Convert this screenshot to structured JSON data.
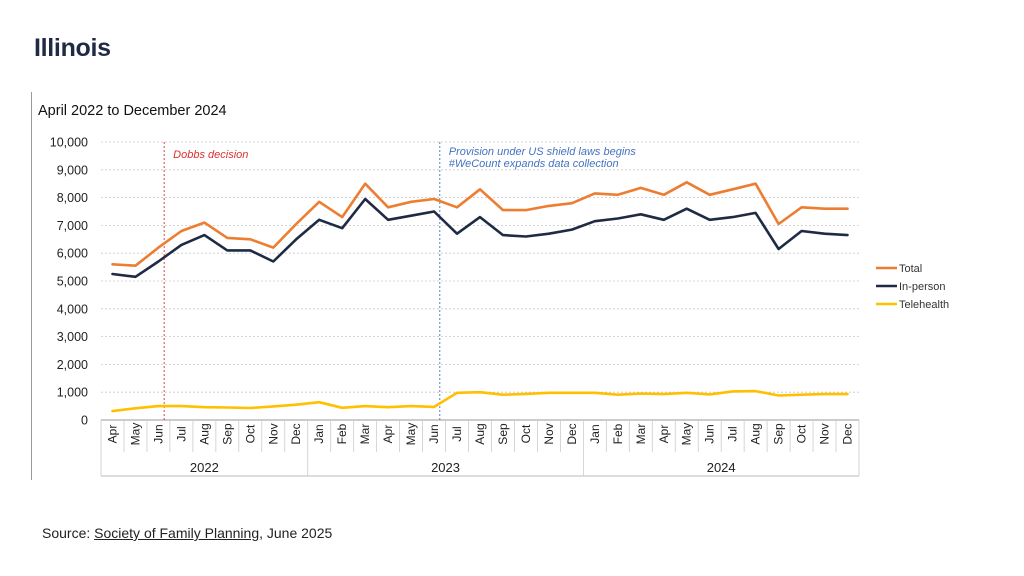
{
  "page_title": "Illinois",
  "source": {
    "prefix": "Source: ",
    "link_text": "Society of Family Planning",
    "suffix": ", June 2025"
  },
  "colors": {
    "total": "#ED7D31",
    "in_person": "#1F2A44",
    "telehealth": "#FFC000",
    "dobbs": "#E03030",
    "shield": "#4472C4"
  },
  "chart_data": {
    "type": "line",
    "title": "April 2022 to December 2024",
    "xlabel": "",
    "ylabel": "",
    "ylim": [
      0,
      10000
    ],
    "yticks": [
      "0",
      "1,000",
      "2,000",
      "3,000",
      "4,000",
      "5,000",
      "6,000",
      "7,000",
      "8,000",
      "9,000",
      "10,000"
    ],
    "grid": true,
    "legend_position": "right",
    "categories": [
      "Apr",
      "May",
      "Jun",
      "Jul",
      "Aug",
      "Sep",
      "Oct",
      "Nov",
      "Dec",
      "Jan",
      "Feb",
      "Mar",
      "Apr",
      "May",
      "Jun",
      "Jul",
      "Aug",
      "Sep",
      "Oct",
      "Nov",
      "Dec",
      "Jan",
      "Feb",
      "Mar",
      "Apr",
      "May",
      "Jun",
      "Jul",
      "Aug",
      "Sep",
      "Oct",
      "Nov",
      "Dec"
    ],
    "year_groups": [
      {
        "label": "2022",
        "start": 0,
        "count": 9
      },
      {
        "label": "2023",
        "start": 9,
        "count": 12
      },
      {
        "label": "2024",
        "start": 21,
        "count": 12
      }
    ],
    "series": [
      {
        "name": "Total",
        "values": [
          5600,
          5550,
          6200,
          6800,
          7100,
          6550,
          6500,
          6200,
          7050,
          7850,
          7300,
          8500,
          7650,
          7850,
          7950,
          7650,
          8300,
          7550,
          7550,
          7700,
          7800,
          8150,
          8100,
          8350,
          8100,
          8550,
          8100,
          8300,
          8500,
          7050,
          7650,
          7600,
          7600
        ]
      },
      {
        "name": "In-person",
        "values": [
          5250,
          5150,
          5700,
          6300,
          6650,
          6100,
          6100,
          5700,
          6500,
          7200,
          6900,
          7950,
          7200,
          7350,
          7500,
          6700,
          7300,
          6650,
          6600,
          6700,
          6850,
          7150,
          7250,
          7400,
          7200,
          7600,
          7200,
          7300,
          7450,
          6150,
          6800,
          6700,
          6650
        ]
      },
      {
        "name": "Telehealth",
        "values": [
          320,
          420,
          500,
          500,
          460,
          450,
          430,
          490,
          550,
          640,
          440,
          500,
          460,
          500,
          470,
          980,
          1000,
          910,
          940,
          980,
          980,
          980,
          910,
          950,
          930,
          980,
          920,
          1030,
          1040,
          880,
          910,
          930,
          930
        ]
      }
    ],
    "annotations": [
      {
        "label": "Dobbs decision",
        "after_index": 2
      },
      {
        "label": "Provision under US shield laws begins",
        "label2": "#WeCount expands data collection",
        "after_index": 14
      }
    ]
  }
}
